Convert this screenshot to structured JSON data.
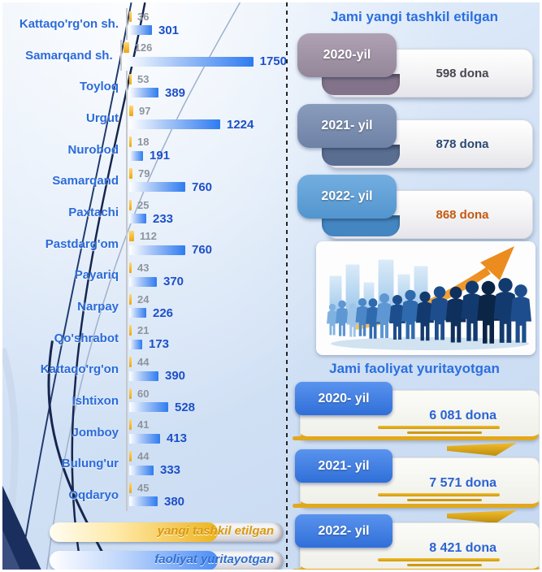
{
  "chart_data": {
    "type": "bar",
    "orientation": "horizontal",
    "title": "",
    "categories": [
      "Kattaqo'rg'on sh.",
      "Samarqand sh.",
      "Toyloq",
      "Urgut",
      "Nurobod",
      "Samarqand",
      "Paxtachi",
      "Pastdarg'om",
      "Payariq",
      "Narpay",
      "Qo'shrabot",
      "Kattaqo'rg'on",
      "Ishtixon",
      "Jomboy",
      "Bulung'ur",
      "Oqdaryo"
    ],
    "series": [
      {
        "name": "yangi tashkil etilgan",
        "color": "#F0AD1E",
        "values": [
          36,
          126,
          53,
          97,
          18,
          79,
          25,
          112,
          43,
          24,
          21,
          44,
          60,
          41,
          44,
          45
        ]
      },
      {
        "name": "faoliyat yuritayotgan",
        "color": "#2E7BF0",
        "values": [
          301,
          1750,
          389,
          1224,
          191,
          760,
          233,
          760,
          370,
          226,
          173,
          390,
          528,
          413,
          333,
          380
        ]
      }
    ],
    "xlim": [
      0,
      1800
    ],
    "grid": false,
    "legend_position": "bottom-left"
  },
  "legend": {
    "new_label": "yangi tashkil etilgan",
    "operating_label": "faoliyat yuritayotgan"
  },
  "right_panel": {
    "new_title": "Jami yangi tashkil etilgan",
    "new_items": [
      {
        "year": "2020-yil",
        "value": "598 dona",
        "tab_top": "#AFA2B4",
        "tab_bottom": "#948699",
        "fold": "#83738A",
        "value_color": "#47474F"
      },
      {
        "year": "2021- yil",
        "value": "878 dona",
        "tab_top": "#8A9CBC",
        "tab_bottom": "#6E82A6",
        "fold": "#5A6E92",
        "value_color": "#2B4A73"
      },
      {
        "year": "2022- yil",
        "value": "868 dona",
        "tab_top": "#74AEE0",
        "tab_bottom": "#5295CE",
        "fold": "#4486C2",
        "value_color": "#C55A11"
      }
    ],
    "operating_title": "Jami faoliyat yuritayotgan",
    "operating_items": [
      {
        "year": "2020- yil",
        "value": "6 081 dona"
      },
      {
        "year": "2021- yil",
        "value": "7 571 dona"
      },
      {
        "year": "2022- yil",
        "value": "8 421 dona"
      }
    ]
  },
  "colors": {
    "category_label": "#2B6BD9",
    "new_value_label": "#8F949C",
    "operating_value_label": "#1D50C8",
    "panel_title": "#2A6FE0",
    "gold": "#E2A81C",
    "operating_card_value": "#2A63D4",
    "blue_tab": "#3B7BE2"
  }
}
